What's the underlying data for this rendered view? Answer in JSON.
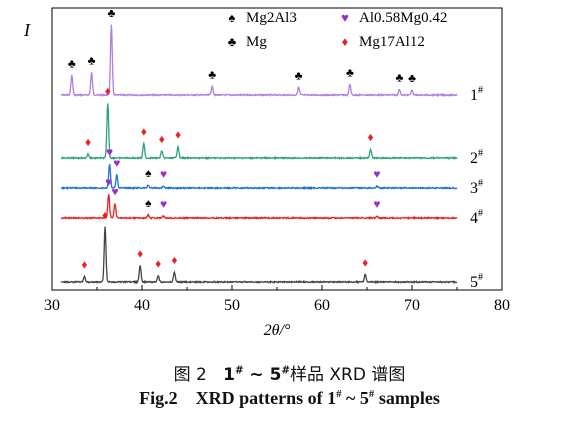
{
  "chart_data": {
    "type": "line",
    "ylabel": "I",
    "xlabel": "2θ/°",
    "xlim": [
      30,
      80
    ],
    "x_ticks": [
      "30",
      "40",
      "50",
      "60",
      "70",
      "80"
    ],
    "legend": {
      "placement": "top-right",
      "entries": [
        {
          "symbol": "♠",
          "label": "Mg2Al3",
          "color": "#000000"
        },
        {
          "symbol": "♥",
          "label": "Al0.58Mg0.42",
          "color": "#9b30c8"
        },
        {
          "symbol": "♣",
          "label": "Mg",
          "color": "#000000"
        },
        {
          "symbol": "♦",
          "label": "Mg17Al12",
          "color": "#e8221e"
        }
      ]
    },
    "series": [
      {
        "name": "1#",
        "color": "#b07fe0",
        "peaks": [
          {
            "x": 32.2,
            "h": 28,
            "m": "♣"
          },
          {
            "x": 34.4,
            "h": 32,
            "m": "♣"
          },
          {
            "x": 36.6,
            "h": 100,
            "m": "♣"
          },
          {
            "x": 47.8,
            "h": 12,
            "m": "♣"
          },
          {
            "x": 57.4,
            "h": 11,
            "m": "♣"
          },
          {
            "x": 63.1,
            "h": 15,
            "m": "♣"
          },
          {
            "x": 68.6,
            "h": 8,
            "m": "♣"
          },
          {
            "x": 70.0,
            "h": 7,
            "m": "♣"
          }
        ]
      },
      {
        "name": "2#",
        "color": "#2aa37a",
        "peaks": [
          {
            "x": 34.0,
            "h": 7,
            "m": "♦"
          },
          {
            "x": 36.2,
            "h": 100,
            "m": "♦"
          },
          {
            "x": 40.2,
            "h": 26,
            "m": "♦"
          },
          {
            "x": 42.2,
            "h": 13,
            "m": "♦"
          },
          {
            "x": 44.0,
            "h": 21,
            "m": "♦"
          },
          {
            "x": 65.4,
            "h": 16,
            "m": "♦"
          }
        ]
      },
      {
        "name": "3#",
        "color": "#1e6fd9",
        "peaks": [
          {
            "x": 36.4,
            "h": 100,
            "m": "♥"
          },
          {
            "x": 37.2,
            "h": 55,
            "m": "♥"
          },
          {
            "x": 40.7,
            "h": 12,
            "m": "♠"
          },
          {
            "x": 42.4,
            "h": 8,
            "m": "♥"
          },
          {
            "x": 66.1,
            "h": 8,
            "m": "♥"
          }
        ]
      },
      {
        "name": "4#",
        "color": "#e8221e",
        "peaks": [
          {
            "x": 36.3,
            "h": 100,
            "m": "♥"
          },
          {
            "x": 37.0,
            "h": 60,
            "m": "♥"
          },
          {
            "x": 40.7,
            "h": 12,
            "m": "♠"
          },
          {
            "x": 42.4,
            "h": 8,
            "m": "♥"
          },
          {
            "x": 66.1,
            "h": 8,
            "m": "♥"
          }
        ]
      },
      {
        "name": "5#",
        "color": "#444444",
        "peaks": [
          {
            "x": 33.6,
            "h": 10,
            "m": "♦"
          },
          {
            "x": 35.9,
            "h": 100,
            "m": "♦"
          },
          {
            "x": 39.8,
            "h": 30,
            "m": "♦"
          },
          {
            "x": 41.8,
            "h": 12,
            "m": "♦"
          },
          {
            "x": 43.6,
            "h": 18,
            "m": "♦"
          },
          {
            "x": 64.8,
            "h": 14,
            "m": "♦"
          }
        ]
      }
    ]
  },
  "captions": {
    "zh_prefix": "图 2",
    "zh_rest": "样品 XRD 谱图",
    "en_prefix": "Fig.2",
    "en_text": "XRD patterns of",
    "en_suffix": "samples",
    "range_start": "1",
    "range_end": "5",
    "sup_mark": "#",
    "range_sep": " ~ "
  }
}
